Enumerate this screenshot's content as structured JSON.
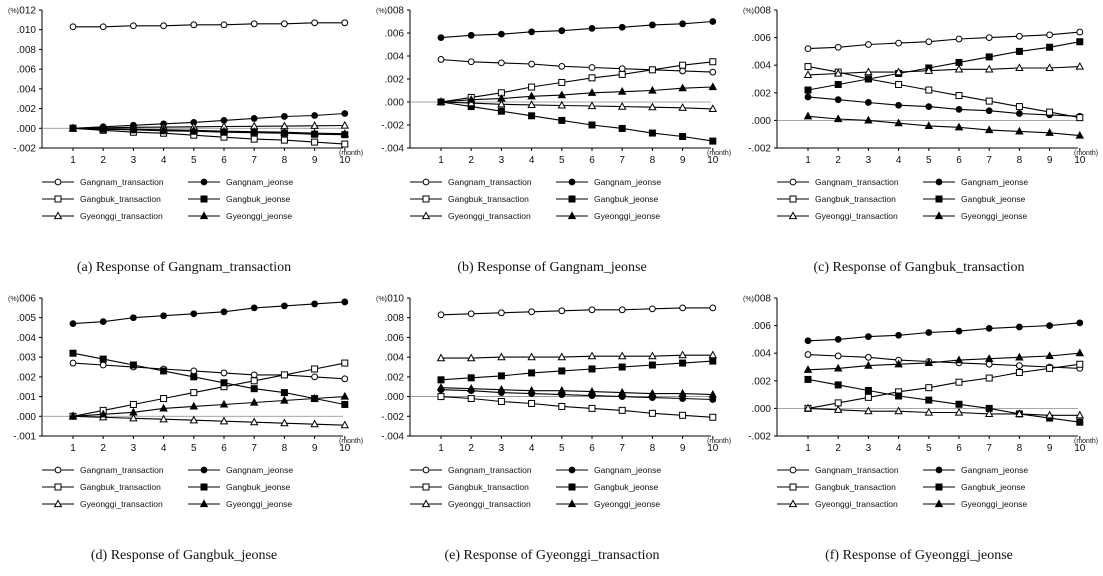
{
  "y_unit_label": "(%)",
  "x_unit_label": "(month)",
  "legend": [
    {
      "label": "Gangnam_transaction",
      "marker": "circle-open"
    },
    {
      "label": "Gangnam_jeonse",
      "marker": "circle-filled"
    },
    {
      "label": "Gangbuk_transaction",
      "marker": "square-open"
    },
    {
      "label": "Gangbuk_jeonse",
      "marker": "square-filled"
    },
    {
      "label": "Gyeonggi_transaction",
      "marker": "triangle-open"
    },
    {
      "label": "Gyeonggi_jeonse",
      "marker": "triangle-filled"
    }
  ],
  "chart_data": [
    {
      "type": "line",
      "caption": "(a) Response of Gangnam_transaction",
      "x": [
        1,
        2,
        3,
        4,
        5,
        6,
        7,
        8,
        9,
        10
      ],
      "ylim": [
        -0.002,
        0.012
      ],
      "yticks": [
        ".012",
        ".010",
        ".008",
        ".006",
        ".004",
        ".002",
        ".000",
        "-.002"
      ],
      "series": [
        {
          "name": "Gangnam_transaction",
          "values": [
            0.0103,
            0.0103,
            0.0104,
            0.0104,
            0.0105,
            0.0105,
            0.0106,
            0.0106,
            0.0107,
            0.0107
          ]
        },
        {
          "name": "Gangnam_jeonse",
          "values": [
            0.0,
            0.00015,
            0.0003,
            0.00045,
            0.0006,
            0.0008,
            0.001,
            0.0012,
            0.0013,
            0.0015
          ]
        },
        {
          "name": "Gangbuk_transaction",
          "values": [
            0.0,
            -0.0002,
            -0.0004,
            -0.0005,
            -0.0007,
            -0.0009,
            -0.0011,
            -0.0012,
            -0.0014,
            -0.0016
          ]
        },
        {
          "name": "Gangbuk_jeonse",
          "values": [
            0.0,
            -0.0001,
            -0.00015,
            -0.00025,
            -0.0003,
            -0.0004,
            -0.00045,
            -0.0005,
            -0.0006,
            -0.00065
          ]
        },
        {
          "name": "Gyeonggi_transaction",
          "values": [
            0.0,
            5e-05,
            0.0001,
            0.00012,
            0.00015,
            0.00018,
            0.0002,
            0.00022,
            0.00025,
            0.00028
          ]
        },
        {
          "name": "Gyeonggi_jeonse",
          "values": [
            0.0,
            -5e-05,
            -0.0001,
            -0.00015,
            -0.0002,
            -0.0003,
            -0.00035,
            -0.0004,
            -0.0005,
            -0.00055
          ]
        }
      ]
    },
    {
      "type": "line",
      "caption": "(b) Response of Gangnam_jeonse",
      "x": [
        1,
        2,
        3,
        4,
        5,
        6,
        7,
        8,
        9,
        10
      ],
      "ylim": [
        -0.004,
        0.008
      ],
      "yticks": [
        ".008",
        ".006",
        ".004",
        ".002",
        ".000",
        "-.002",
        "-.004"
      ],
      "series": [
        {
          "name": "Gangnam_transaction",
          "values": [
            0.0037,
            0.0035,
            0.0034,
            0.0033,
            0.0031,
            0.003,
            0.0029,
            0.0028,
            0.0027,
            0.0026
          ]
        },
        {
          "name": "Gangnam_jeonse",
          "values": [
            0.0056,
            0.0058,
            0.0059,
            0.0061,
            0.0062,
            0.0064,
            0.0065,
            0.0067,
            0.0068,
            0.007
          ]
        },
        {
          "name": "Gangbuk_transaction",
          "values": [
            0.0,
            0.0004,
            0.0008,
            0.0013,
            0.0017,
            0.0021,
            0.0024,
            0.0028,
            0.0032,
            0.0035
          ]
        },
        {
          "name": "Gangbuk_jeonse",
          "values": [
            0.0,
            -0.0004,
            -0.0008,
            -0.0012,
            -0.0016,
            -0.002,
            -0.0023,
            -0.0027,
            -0.003,
            -0.0034
          ]
        },
        {
          "name": "Gyeonggi_transaction",
          "values": [
            0.0,
            -0.0001,
            -0.0002,
            -0.00025,
            -0.0003,
            -0.00035,
            -0.0004,
            -0.00045,
            -0.0005,
            -0.0006
          ]
        },
        {
          "name": "Gyeonggi_jeonse",
          "values": [
            0.0,
            0.0002,
            0.0003,
            0.0005,
            0.0006,
            0.0008,
            0.0009,
            0.001,
            0.0012,
            0.0013
          ]
        }
      ]
    },
    {
      "type": "line",
      "caption": "(c) Response of Gangbuk_transaction",
      "x": [
        1,
        2,
        3,
        4,
        5,
        6,
        7,
        8,
        9,
        10
      ],
      "ylim": [
        -0.002,
        0.008
      ],
      "yticks": [
        ".008",
        ".006",
        ".004",
        ".002",
        ".000",
        "-.002"
      ],
      "series": [
        {
          "name": "Gangnam_transaction",
          "values": [
            0.0052,
            0.0053,
            0.0055,
            0.0056,
            0.0057,
            0.0059,
            0.006,
            0.0061,
            0.0062,
            0.0064
          ]
        },
        {
          "name": "Gangnam_jeonse",
          "values": [
            0.0017,
            0.0015,
            0.0013,
            0.0011,
            0.001,
            0.0008,
            0.0007,
            0.0005,
            0.0004,
            0.0003
          ]
        },
        {
          "name": "Gangbuk_transaction",
          "values": [
            0.0039,
            0.0035,
            0.003,
            0.0026,
            0.0022,
            0.0018,
            0.0014,
            0.001,
            0.0006,
            0.0002
          ]
        },
        {
          "name": "Gangbuk_jeonse",
          "values": [
            0.0022,
            0.0026,
            0.003,
            0.0034,
            0.0038,
            0.0042,
            0.0046,
            0.005,
            0.0053,
            0.0057
          ]
        },
        {
          "name": "Gyeonggi_transaction",
          "values": [
            0.0033,
            0.0034,
            0.0035,
            0.0035,
            0.0036,
            0.0037,
            0.0037,
            0.0038,
            0.0038,
            0.0039
          ]
        },
        {
          "name": "Gyeonggi_jeonse",
          "values": [
            0.0003,
            0.0001,
            0.0,
            -0.0002,
            -0.0004,
            -0.0005,
            -0.0007,
            -0.0008,
            -0.0009,
            -0.0011
          ]
        }
      ]
    },
    {
      "type": "line",
      "caption": "(d) Response of Gangbuk_jeonse",
      "x": [
        1,
        2,
        3,
        4,
        5,
        6,
        7,
        8,
        9,
        10
      ],
      "ylim": [
        -0.001,
        0.006
      ],
      "yticks": [
        ".006",
        ".005",
        ".004",
        ".003",
        ".002",
        ".001",
        ".000",
        "-.001"
      ],
      "series": [
        {
          "name": "Gangnam_transaction",
          "values": [
            0.0027,
            0.0026,
            0.0025,
            0.0024,
            0.0023,
            0.0022,
            0.0021,
            0.0021,
            0.002,
            0.0019
          ]
        },
        {
          "name": "Gangnam_jeonse",
          "values": [
            0.0047,
            0.0048,
            0.005,
            0.0051,
            0.0052,
            0.0053,
            0.0055,
            0.0056,
            0.0057,
            0.0058
          ]
        },
        {
          "name": "Gangbuk_transaction",
          "values": [
            0.0,
            0.0003,
            0.0006,
            0.0009,
            0.0012,
            0.0015,
            0.0018,
            0.0021,
            0.0024,
            0.0027
          ]
        },
        {
          "name": "Gangbuk_jeonse",
          "values": [
            0.0032,
            0.0029,
            0.0026,
            0.0023,
            0.002,
            0.0017,
            0.0014,
            0.0012,
            0.0009,
            0.0006
          ]
        },
        {
          "name": "Gyeonggi_transaction",
          "values": [
            0.0,
            -5e-05,
            -0.0001,
            -0.00015,
            -0.0002,
            -0.00025,
            -0.0003,
            -0.00035,
            -0.0004,
            -0.00045
          ]
        },
        {
          "name": "Gyeonggi_jeonse",
          "values": [
            0.0,
            0.0001,
            0.0002,
            0.0004,
            0.0005,
            0.0006,
            0.0007,
            0.0008,
            0.0009,
            0.001
          ]
        }
      ]
    },
    {
      "type": "line",
      "caption": "(e) Response of Gyeonggi_transaction",
      "x": [
        1,
        2,
        3,
        4,
        5,
        6,
        7,
        8,
        9,
        10
      ],
      "ylim": [
        -0.004,
        0.01
      ],
      "yticks": [
        ".010",
        ".008",
        ".006",
        ".004",
        ".002",
        ".000",
        "-.002",
        "-.004"
      ],
      "series": [
        {
          "name": "Gangnam_transaction",
          "values": [
            0.0083,
            0.0084,
            0.0085,
            0.0086,
            0.0087,
            0.0088,
            0.0088,
            0.0089,
            0.009,
            0.009
          ]
        },
        {
          "name": "Gangnam_jeonse",
          "values": [
            0.0007,
            0.0006,
            0.0004,
            0.0003,
            0.0002,
            0.0001,
            0.0,
            -0.0001,
            -0.0002,
            -0.0003
          ]
        },
        {
          "name": "Gangbuk_transaction",
          "values": [
            0.0,
            -0.0002,
            -0.0005,
            -0.0007,
            -0.001,
            -0.0012,
            -0.0014,
            -0.0017,
            -0.0019,
            -0.0021
          ]
        },
        {
          "name": "Gangbuk_jeonse",
          "values": [
            0.0017,
            0.0019,
            0.0021,
            0.0024,
            0.0026,
            0.0028,
            0.003,
            0.0032,
            0.0034,
            0.0036
          ]
        },
        {
          "name": "Gyeonggi_transaction",
          "values": [
            0.0039,
            0.0039,
            0.004,
            0.004,
            0.004,
            0.0041,
            0.0041,
            0.0041,
            0.0042,
            0.0042
          ]
        },
        {
          "name": "Gyeonggi_jeonse",
          "values": [
            0.0009,
            0.0008,
            0.0007,
            0.0006,
            0.0006,
            0.0005,
            0.0004,
            0.0003,
            0.0003,
            0.0002
          ]
        }
      ]
    },
    {
      "type": "line",
      "caption": "(f) Response of Gyeonggi_jeonse",
      "x": [
        1,
        2,
        3,
        4,
        5,
        6,
        7,
        8,
        9,
        10
      ],
      "ylim": [
        -0.002,
        0.008
      ],
      "yticks": [
        ".008",
        ".006",
        ".004",
        ".002",
        ".000",
        "-.002"
      ],
      "series": [
        {
          "name": "Gangnam_transaction",
          "values": [
            0.0039,
            0.0038,
            0.0037,
            0.0035,
            0.0034,
            0.0033,
            0.0032,
            0.0031,
            0.003,
            0.0029
          ]
        },
        {
          "name": "Gangnam_jeonse",
          "values": [
            0.0049,
            0.005,
            0.0052,
            0.0053,
            0.0055,
            0.0056,
            0.0058,
            0.0059,
            0.006,
            0.0062
          ]
        },
        {
          "name": "Gangbuk_transaction",
          "values": [
            0.0,
            0.0004,
            0.0008,
            0.0012,
            0.0015,
            0.0019,
            0.0022,
            0.0026,
            0.0029,
            0.0032
          ]
        },
        {
          "name": "Gangbuk_jeonse",
          "values": [
            0.0021,
            0.0017,
            0.0013,
            0.0009,
            0.0006,
            0.0003,
            0.0,
            -0.0004,
            -0.0007,
            -0.001
          ]
        },
        {
          "name": "Gyeonggi_transaction",
          "values": [
            0.0,
            -0.0001,
            -0.0002,
            -0.0002,
            -0.0003,
            -0.0003,
            -0.0004,
            -0.0004,
            -0.0005,
            -0.0005
          ]
        },
        {
          "name": "Gyeonggi_jeonse",
          "values": [
            0.0028,
            0.0029,
            0.0031,
            0.0032,
            0.0033,
            0.0035,
            0.0036,
            0.0037,
            0.0038,
            0.004
          ]
        }
      ]
    }
  ]
}
